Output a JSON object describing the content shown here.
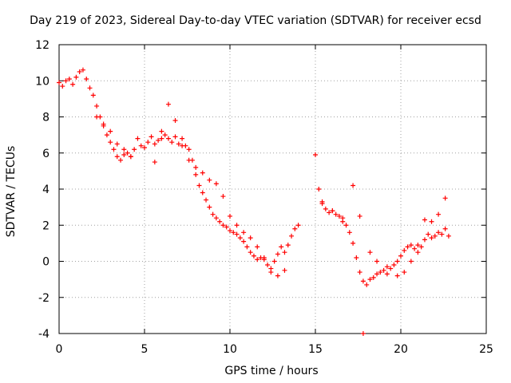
{
  "chart_data": {
    "type": "scatter",
    "title": "Day 219 of 2023, Sidereal Day-to-day VTEC variation (SDTVAR) for receiver ecsd",
    "xlabel": "GPS time / hours",
    "ylabel": "SDTVAR / TECUs",
    "xlim": [
      0,
      25
    ],
    "ylim": [
      -4,
      12
    ],
    "xticks": [
      "0",
      "5",
      "10",
      "15",
      "20",
      "25"
    ],
    "yticks": [
      "-4",
      "-2",
      "0",
      "2",
      "4",
      "6",
      "8",
      "10",
      "12"
    ],
    "grid": true,
    "marker": "+",
    "series": [
      {
        "name": "SDTVAR",
        "color": "#ff0000",
        "x": [
          0.0,
          0.2,
          0.4,
          0.6,
          0.8,
          1.0,
          1.2,
          1.4,
          1.6,
          1.8,
          2.0,
          2.2,
          2.4,
          2.6,
          2.8,
          3.0,
          3.2,
          3.4,
          3.6,
          3.8,
          4.0,
          4.2,
          4.4,
          4.6,
          4.8,
          5.0,
          5.2,
          5.4,
          5.6,
          5.8,
          6.0,
          6.2,
          6.4,
          6.6,
          6.8,
          7.0,
          7.2,
          7.4,
          7.6,
          7.8,
          8.0,
          8.2,
          8.4,
          8.6,
          8.8,
          9.0,
          9.2,
          9.4,
          9.6,
          9.8,
          10.0,
          10.2,
          10.4,
          10.6,
          10.8,
          11.0,
          11.2,
          11.4,
          11.6,
          11.8,
          12.0,
          12.2,
          12.4,
          12.6,
          12.8,
          13.0,
          13.2,
          13.4,
          13.6,
          13.8,
          14.0,
          15.0,
          15.2,
          15.4,
          15.6,
          15.8,
          16.0,
          16.2,
          16.4,
          16.6,
          16.8,
          17.0,
          17.2,
          17.4,
          17.6,
          17.8,
          18.0,
          18.2,
          18.4,
          18.6,
          18.8,
          19.0,
          19.2,
          19.4,
          19.6,
          19.8,
          20.0,
          20.2,
          20.4,
          20.6,
          20.8,
          21.0,
          21.2,
          21.4,
          21.6,
          21.8,
          22.0,
          22.2,
          22.4,
          22.6,
          22.8,
          2.2,
          2.6,
          3.0,
          3.4,
          3.8,
          4.2,
          5.6,
          6.0,
          6.4,
          6.8,
          7.2,
          7.6,
          8.0,
          8.4,
          8.8,
          9.2,
          9.6,
          10.0,
          10.4,
          10.8,
          11.2,
          11.6,
          12.0,
          12.4,
          12.8,
          13.2,
          15.4,
          16.0,
          16.6,
          17.2,
          17.6,
          18.2,
          18.6,
          19.2,
          19.8,
          20.2,
          20.6,
          21.0,
          21.4,
          21.8,
          22.2,
          22.6,
          17.8
        ],
        "y": [
          9.9,
          9.7,
          10.0,
          10.1,
          9.8,
          10.2,
          10.5,
          10.6,
          10.1,
          9.6,
          9.2,
          8.6,
          8.0,
          7.6,
          7.0,
          6.6,
          6.2,
          5.8,
          5.6,
          5.9,
          6.0,
          5.8,
          6.2,
          6.8,
          6.4,
          6.3,
          6.6,
          6.9,
          6.5,
          6.7,
          7.2,
          7.0,
          6.8,
          6.6,
          6.9,
          6.5,
          6.8,
          6.4,
          6.2,
          5.6,
          4.8,
          4.2,
          3.8,
          3.4,
          3.0,
          2.6,
          2.4,
          2.2,
          2.0,
          1.9,
          1.7,
          1.6,
          1.5,
          1.3,
          1.1,
          0.8,
          0.5,
          0.3,
          0.1,
          0.2,
          0.1,
          -0.2,
          -0.4,
          0.0,
          0.4,
          0.8,
          0.5,
          0.9,
          1.4,
          1.8,
          2.0,
          5.9,
          4.0,
          3.2,
          2.9,
          2.7,
          2.8,
          2.6,
          2.5,
          2.4,
          2.0,
          1.6,
          1.0,
          0.2,
          -0.6,
          -1.1,
          -1.3,
          -1.0,
          -0.9,
          -0.7,
          -0.6,
          -0.5,
          -0.7,
          -0.4,
          -0.2,
          0.0,
          0.3,
          0.6,
          0.8,
          0.9,
          0.7,
          0.5,
          0.8,
          1.2,
          1.5,
          1.3,
          1.4,
          1.6,
          1.5,
          1.8,
          1.4,
          8.0,
          7.5,
          7.2,
          6.5,
          6.2,
          5.8,
          5.5,
          6.8,
          8.7,
          7.8,
          6.4,
          5.6,
          5.2,
          4.9,
          4.5,
          4.3,
          3.6,
          2.5,
          2.0,
          1.6,
          1.3,
          0.8,
          0.2,
          -0.6,
          -0.8,
          -0.5,
          3.3,
          2.8,
          2.2,
          4.2,
          2.5,
          0.5,
          0.0,
          -0.3,
          -0.8,
          -0.6,
          0.0,
          0.9,
          2.3,
          2.2,
          2.6,
          3.5,
          -4.0
        ]
      }
    ]
  }
}
